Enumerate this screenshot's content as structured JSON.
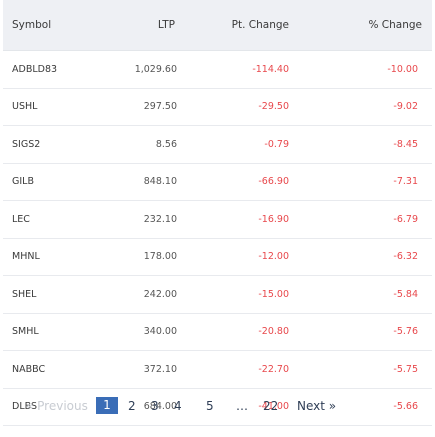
{
  "table": {
    "headers": {
      "symbol": "Symbol",
      "ltp": "LTP",
      "pt_change": "Pt. Change",
      "pct_change": "% Change"
    },
    "rows": [
      {
        "symbol": "ADBLD83",
        "ltp": "1,029.60",
        "pt_change": "-114.40",
        "pct_change": "-10.00"
      },
      {
        "symbol": "USHL",
        "ltp": "297.50",
        "pt_change": "-29.50",
        "pct_change": "-9.02"
      },
      {
        "symbol": "SIGS2",
        "ltp": "8.56",
        "pt_change": "-0.79",
        "pct_change": "-8.45"
      },
      {
        "symbol": "GILB",
        "ltp": "848.10",
        "pt_change": "-66.90",
        "pct_change": "-7.31"
      },
      {
        "symbol": "LEC",
        "ltp": "232.10",
        "pt_change": "-16.90",
        "pct_change": "-6.79"
      },
      {
        "symbol": "MHNL",
        "ltp": "178.00",
        "pt_change": "-12.00",
        "pct_change": "-6.32"
      },
      {
        "symbol": "SHEL",
        "ltp": "242.00",
        "pt_change": "-15.00",
        "pct_change": "-5.84"
      },
      {
        "symbol": "SMHL",
        "ltp": "340.00",
        "pt_change": "-20.80",
        "pct_change": "-5.76"
      },
      {
        "symbol": "NABBC",
        "ltp": "372.10",
        "pt_change": "-22.70",
        "pct_change": "-5.75"
      },
      {
        "symbol": "DLBS",
        "ltp": "684.00",
        "pt_change": "-41.00",
        "pct_change": "-5.66"
      }
    ]
  },
  "pagination": {
    "previous": "« Previous",
    "current": "1",
    "pages": [
      "2",
      "3",
      "4",
      "5"
    ],
    "ellipsis": "…",
    "last": "22",
    "next": "Next »"
  },
  "colors": {
    "negative": "#e8484c",
    "header_bg": "#eef0f4",
    "active_page": "#3a6db7"
  }
}
